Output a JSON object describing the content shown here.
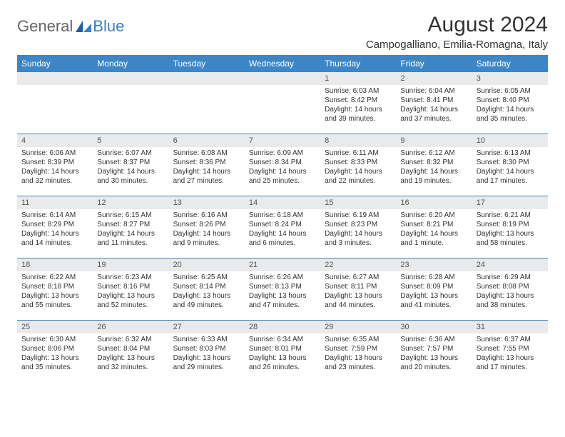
{
  "logo": {
    "general": "General",
    "blue": "Blue"
  },
  "title": "August 2024",
  "location": "Campogalliano, Emilia-Romagna, Italy",
  "colors": {
    "header_bg": "#3d86c6",
    "header_text": "#ffffff",
    "daynum_bg": "#e9eaeb",
    "row_divider": "#3d86c6",
    "body_text": "#333333",
    "logo_gray": "#666666",
    "logo_blue": "#3a7fc4",
    "page_bg": "#ffffff"
  },
  "weekdays": [
    "Sunday",
    "Monday",
    "Tuesday",
    "Wednesday",
    "Thursday",
    "Friday",
    "Saturday"
  ],
  "weeks": [
    [
      {
        "n": "",
        "sunrise": "",
        "sunset": "",
        "daylight": ""
      },
      {
        "n": "",
        "sunrise": "",
        "sunset": "",
        "daylight": ""
      },
      {
        "n": "",
        "sunrise": "",
        "sunset": "",
        "daylight": ""
      },
      {
        "n": "",
        "sunrise": "",
        "sunset": "",
        "daylight": ""
      },
      {
        "n": "1",
        "sunrise": "Sunrise: 6:03 AM",
        "sunset": "Sunset: 8:42 PM",
        "daylight": "Daylight: 14 hours and 39 minutes."
      },
      {
        "n": "2",
        "sunrise": "Sunrise: 6:04 AM",
        "sunset": "Sunset: 8:41 PM",
        "daylight": "Daylight: 14 hours and 37 minutes."
      },
      {
        "n": "3",
        "sunrise": "Sunrise: 6:05 AM",
        "sunset": "Sunset: 8:40 PM",
        "daylight": "Daylight: 14 hours and 35 minutes."
      }
    ],
    [
      {
        "n": "4",
        "sunrise": "Sunrise: 6:06 AM",
        "sunset": "Sunset: 8:39 PM",
        "daylight": "Daylight: 14 hours and 32 minutes."
      },
      {
        "n": "5",
        "sunrise": "Sunrise: 6:07 AM",
        "sunset": "Sunset: 8:37 PM",
        "daylight": "Daylight: 14 hours and 30 minutes."
      },
      {
        "n": "6",
        "sunrise": "Sunrise: 6:08 AM",
        "sunset": "Sunset: 8:36 PM",
        "daylight": "Daylight: 14 hours and 27 minutes."
      },
      {
        "n": "7",
        "sunrise": "Sunrise: 6:09 AM",
        "sunset": "Sunset: 8:34 PM",
        "daylight": "Daylight: 14 hours and 25 minutes."
      },
      {
        "n": "8",
        "sunrise": "Sunrise: 6:11 AM",
        "sunset": "Sunset: 8:33 PM",
        "daylight": "Daylight: 14 hours and 22 minutes."
      },
      {
        "n": "9",
        "sunrise": "Sunrise: 6:12 AM",
        "sunset": "Sunset: 8:32 PM",
        "daylight": "Daylight: 14 hours and 19 minutes."
      },
      {
        "n": "10",
        "sunrise": "Sunrise: 6:13 AM",
        "sunset": "Sunset: 8:30 PM",
        "daylight": "Daylight: 14 hours and 17 minutes."
      }
    ],
    [
      {
        "n": "11",
        "sunrise": "Sunrise: 6:14 AM",
        "sunset": "Sunset: 8:29 PM",
        "daylight": "Daylight: 14 hours and 14 minutes."
      },
      {
        "n": "12",
        "sunrise": "Sunrise: 6:15 AM",
        "sunset": "Sunset: 8:27 PM",
        "daylight": "Daylight: 14 hours and 11 minutes."
      },
      {
        "n": "13",
        "sunrise": "Sunrise: 6:16 AM",
        "sunset": "Sunset: 8:26 PM",
        "daylight": "Daylight: 14 hours and 9 minutes."
      },
      {
        "n": "14",
        "sunrise": "Sunrise: 6:18 AM",
        "sunset": "Sunset: 8:24 PM",
        "daylight": "Daylight: 14 hours and 6 minutes."
      },
      {
        "n": "15",
        "sunrise": "Sunrise: 6:19 AM",
        "sunset": "Sunset: 8:23 PM",
        "daylight": "Daylight: 14 hours and 3 minutes."
      },
      {
        "n": "16",
        "sunrise": "Sunrise: 6:20 AM",
        "sunset": "Sunset: 8:21 PM",
        "daylight": "Daylight: 14 hours and 1 minute."
      },
      {
        "n": "17",
        "sunrise": "Sunrise: 6:21 AM",
        "sunset": "Sunset: 8:19 PM",
        "daylight": "Daylight: 13 hours and 58 minutes."
      }
    ],
    [
      {
        "n": "18",
        "sunrise": "Sunrise: 6:22 AM",
        "sunset": "Sunset: 8:18 PM",
        "daylight": "Daylight: 13 hours and 55 minutes."
      },
      {
        "n": "19",
        "sunrise": "Sunrise: 6:23 AM",
        "sunset": "Sunset: 8:16 PM",
        "daylight": "Daylight: 13 hours and 52 minutes."
      },
      {
        "n": "20",
        "sunrise": "Sunrise: 6:25 AM",
        "sunset": "Sunset: 8:14 PM",
        "daylight": "Daylight: 13 hours and 49 minutes."
      },
      {
        "n": "21",
        "sunrise": "Sunrise: 6:26 AM",
        "sunset": "Sunset: 8:13 PM",
        "daylight": "Daylight: 13 hours and 47 minutes."
      },
      {
        "n": "22",
        "sunrise": "Sunrise: 6:27 AM",
        "sunset": "Sunset: 8:11 PM",
        "daylight": "Daylight: 13 hours and 44 minutes."
      },
      {
        "n": "23",
        "sunrise": "Sunrise: 6:28 AM",
        "sunset": "Sunset: 8:09 PM",
        "daylight": "Daylight: 13 hours and 41 minutes."
      },
      {
        "n": "24",
        "sunrise": "Sunrise: 6:29 AM",
        "sunset": "Sunset: 8:08 PM",
        "daylight": "Daylight: 13 hours and 38 minutes."
      }
    ],
    [
      {
        "n": "25",
        "sunrise": "Sunrise: 6:30 AM",
        "sunset": "Sunset: 8:06 PM",
        "daylight": "Daylight: 13 hours and 35 minutes."
      },
      {
        "n": "26",
        "sunrise": "Sunrise: 6:32 AM",
        "sunset": "Sunset: 8:04 PM",
        "daylight": "Daylight: 13 hours and 32 minutes."
      },
      {
        "n": "27",
        "sunrise": "Sunrise: 6:33 AM",
        "sunset": "Sunset: 8:03 PM",
        "daylight": "Daylight: 13 hours and 29 minutes."
      },
      {
        "n": "28",
        "sunrise": "Sunrise: 6:34 AM",
        "sunset": "Sunset: 8:01 PM",
        "daylight": "Daylight: 13 hours and 26 minutes."
      },
      {
        "n": "29",
        "sunrise": "Sunrise: 6:35 AM",
        "sunset": "Sunset: 7:59 PM",
        "daylight": "Daylight: 13 hours and 23 minutes."
      },
      {
        "n": "30",
        "sunrise": "Sunrise: 6:36 AM",
        "sunset": "Sunset: 7:57 PM",
        "daylight": "Daylight: 13 hours and 20 minutes."
      },
      {
        "n": "31",
        "sunrise": "Sunrise: 6:37 AM",
        "sunset": "Sunset: 7:55 PM",
        "daylight": "Daylight: 13 hours and 17 minutes."
      }
    ]
  ]
}
